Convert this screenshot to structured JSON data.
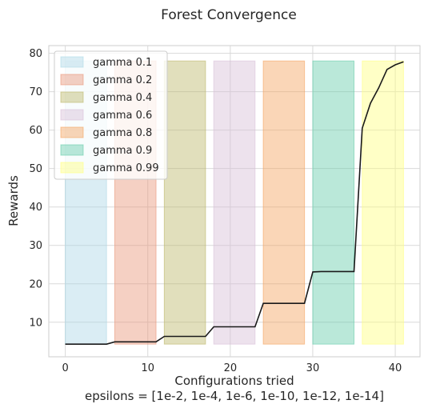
{
  "chart_data": {
    "type": "line",
    "title": "Forest Convergence",
    "xlabel": "Configurations tried",
    "xlabel_sub": "epsilons = [1e-2, 1e-4, 1e-6, 1e-10, 1e-12, 1e-14]",
    "ylabel": "Rewards",
    "xlim": [
      -2,
      43
    ],
    "ylim": [
      1,
      82
    ],
    "xticks": [
      0,
      10,
      20,
      30,
      40
    ],
    "yticks": [
      10,
      20,
      30,
      40,
      50,
      60,
      70,
      80
    ],
    "grid": true,
    "legend_position": "top-left",
    "line_color": "#1a1a1a",
    "bands": [
      {
        "name": "gamma 0.1",
        "x_start": 0,
        "x_end": 5,
        "y_bottom": 4.3,
        "y_top": 78,
        "color": "#add8e6"
      },
      {
        "name": "gamma 0.2",
        "x_start": 6,
        "x_end": 11,
        "y_bottom": 4.3,
        "y_top": 78,
        "color": "#e9967a"
      },
      {
        "name": "gamma 0.4",
        "x_start": 12,
        "x_end": 17,
        "y_bottom": 4.3,
        "y_top": 78,
        "color": "#bdb76b"
      },
      {
        "name": "gamma 0.6",
        "x_start": 18,
        "x_end": 23,
        "y_bottom": 4.3,
        "y_top": 78,
        "color": "#d8bfd8"
      },
      {
        "name": "gamma 0.8",
        "x_start": 24,
        "x_end": 29,
        "y_bottom": 4.3,
        "y_top": 78,
        "color": "#f4a460"
      },
      {
        "name": "gamma 0.9",
        "x_start": 30,
        "x_end": 35,
        "y_bottom": 4.3,
        "y_top": 78,
        "color": "#66cdaa"
      },
      {
        "name": "gamma 0.99",
        "x_start": 36,
        "x_end": 41,
        "y_bottom": 4.3,
        "y_top": 78,
        "color": "#ffff80"
      }
    ],
    "series": [
      {
        "x": [
          0,
          1,
          2,
          3,
          4,
          5,
          6,
          7,
          8,
          9,
          10,
          11,
          12,
          13,
          14,
          15,
          16,
          17,
          18,
          19,
          20,
          21,
          22,
          23,
          24,
          25,
          26,
          27,
          28,
          29,
          30,
          31,
          32,
          33,
          34,
          35,
          36,
          37,
          38,
          39,
          40,
          41
        ],
        "values": [
          4.3,
          4.3,
          4.3,
          4.3,
          4.3,
          4.3,
          4.9,
          4.9,
          4.9,
          4.9,
          4.9,
          4.9,
          6.3,
          6.3,
          6.3,
          6.3,
          6.3,
          6.3,
          8.8,
          8.8,
          8.8,
          8.8,
          8.8,
          8.8,
          14.9,
          14.9,
          14.9,
          14.9,
          14.9,
          14.9,
          23.1,
          23.2,
          23.2,
          23.2,
          23.2,
          23.2,
          60.5,
          67.0,
          71.0,
          75.8,
          77.0,
          77.8
        ]
      }
    ]
  }
}
